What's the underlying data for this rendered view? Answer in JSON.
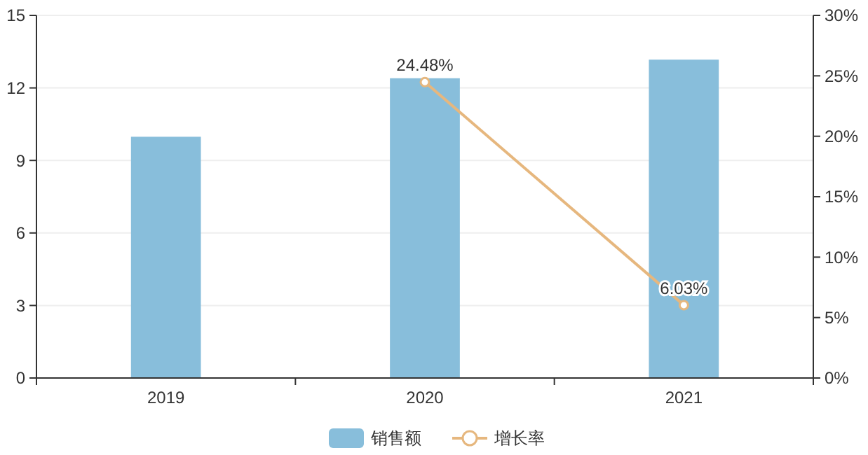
{
  "chart_data": {
    "type": "bar",
    "categories": [
      "2019",
      "2020",
      "2021"
    ],
    "series": [
      {
        "name": "销售额",
        "color": "#88bedb",
        "values": [
          9.98,
          12.4,
          13.17
        ]
      },
      {
        "name": "增长率",
        "type": "line",
        "axis": "y2",
        "color": "#e6b77e",
        "values": [
          null,
          24.48,
          6.03
        ],
        "value_labels": [
          null,
          "24.48%",
          "6.03%"
        ],
        "marker": "circle"
      }
    ],
    "ylim": [
      0,
      15
    ],
    "yticks": [
      0,
      3,
      6,
      9,
      12,
      15
    ],
    "y2lim": [
      0,
      30
    ],
    "y2ticks": [
      {
        "value": 0,
        "label": "0%"
      },
      {
        "value": 5,
        "label": "5%"
      },
      {
        "value": 10,
        "label": "10%"
      },
      {
        "value": 15,
        "label": "15%"
      },
      {
        "value": 20,
        "label": "20%"
      },
      {
        "value": 25,
        "label": "25%"
      },
      {
        "value": 30,
        "label": "30%"
      }
    ],
    "grid": "y",
    "legend": "bottom"
  }
}
